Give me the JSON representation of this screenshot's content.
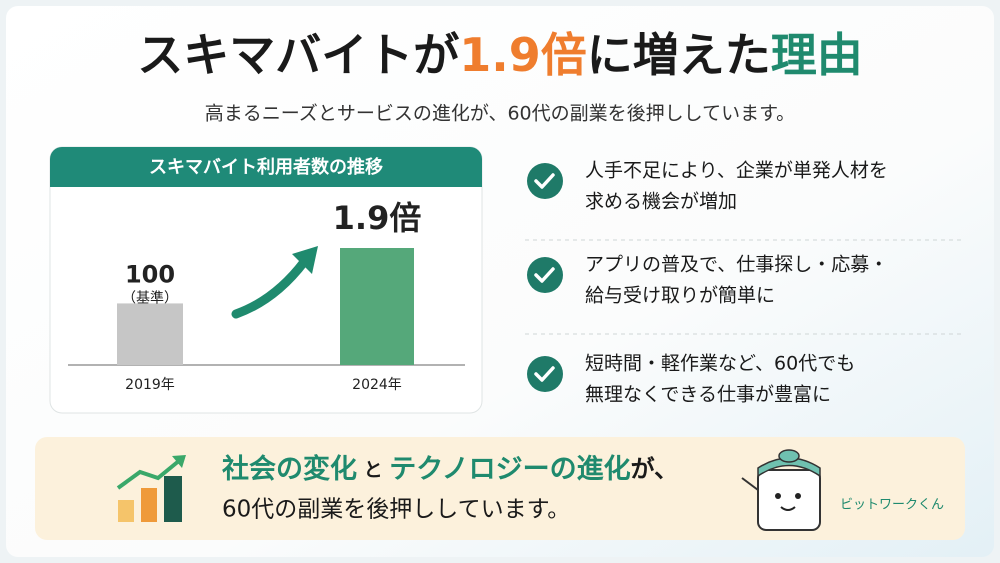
{
  "header": {
    "title_parts": [
      {
        "text": "スキマバイトが",
        "color": "#1a1a1a"
      },
      {
        "text": "1.9倍",
        "color": "#ef7d2e"
      },
      {
        "text": "に増えた",
        "color": "#1a1a1a"
      },
      {
        "text": "理由",
        "color": "#1f8a6e"
      }
    ],
    "subtitle": "高まるニーズとサービスの進化が、60代の副業を後押ししています。"
  },
  "chart": {
    "type": "bar",
    "title": "スキマバイト利用者数の推移",
    "categories": [
      "2019年",
      "2024年"
    ],
    "values": [
      100,
      190
    ],
    "value_labels": [
      "100",
      "1.9倍"
    ],
    "baseline_note": "（基準）",
    "colors": [
      "#c6c6c6",
      "#55a87a"
    ]
  },
  "points": [
    {
      "lines": [
        "人手不足により、企業が単発人材を",
        "求める機会が増加"
      ]
    },
    {
      "lines": [
        "アプリの普及で、仕事探し・応募・",
        "給与受け取りが簡単に"
      ]
    },
    {
      "lines": [
        "短時間・軽作業など、60代でも",
        "無理なくできる仕事が豊富に"
      ]
    }
  ],
  "footer": {
    "line1_parts": [
      {
        "text": "社会の変化",
        "color": "#1f8a6e",
        "size": 27
      },
      {
        "text": " と ",
        "color": "#1a1a1a",
        "size": 19
      },
      {
        "text": "テクノロジーの進化",
        "color": "#1f8a6e",
        "size": 27
      },
      {
        "text": "が、",
        "color": "#1a1a1a",
        "size": 24
      }
    ],
    "line2": "60代の副業を後押ししています。",
    "mascot_name": "ビットワークくん"
  }
}
